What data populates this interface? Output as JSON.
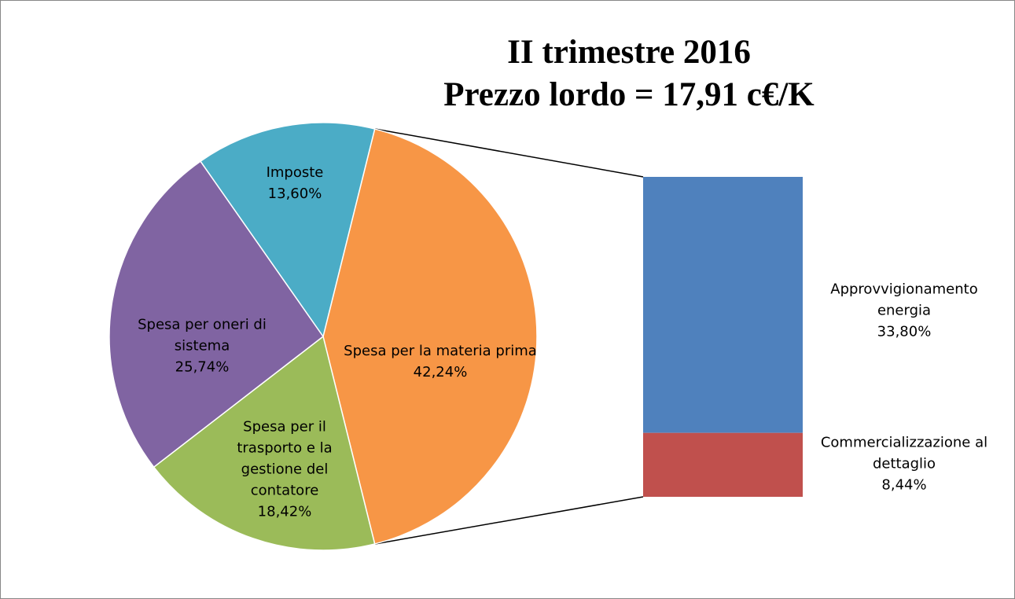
{
  "chart_data": {
    "type": "pie",
    "title": "II trimestre 2016",
    "subtitle": "Prezzo lordo = 17,91 c€/K",
    "categories": [
      "Spesa per la materia prima",
      "Spesa per il trasporto e la gestione del contatore",
      "Spesa per oneri di sistema",
      "Imposte"
    ],
    "values": [
      42.24,
      18.42,
      25.74,
      13.6
    ],
    "value_labels": [
      "42,24%",
      "18,42%",
      "25,74%",
      "13,60%"
    ],
    "colors": [
      "#f79646",
      "#9bbb59",
      "#8064a2",
      "#4bacc6"
    ],
    "breakdown": {
      "type": "bar",
      "categories": [
        "Approvvigionamento energia",
        "Commercializzazione al dettaglio"
      ],
      "values": [
        33.8,
        8.44
      ],
      "value_labels": [
        "33,80%",
        "8,44%"
      ],
      "colors": [
        "#4f81bd",
        "#c0504d"
      ]
    }
  }
}
